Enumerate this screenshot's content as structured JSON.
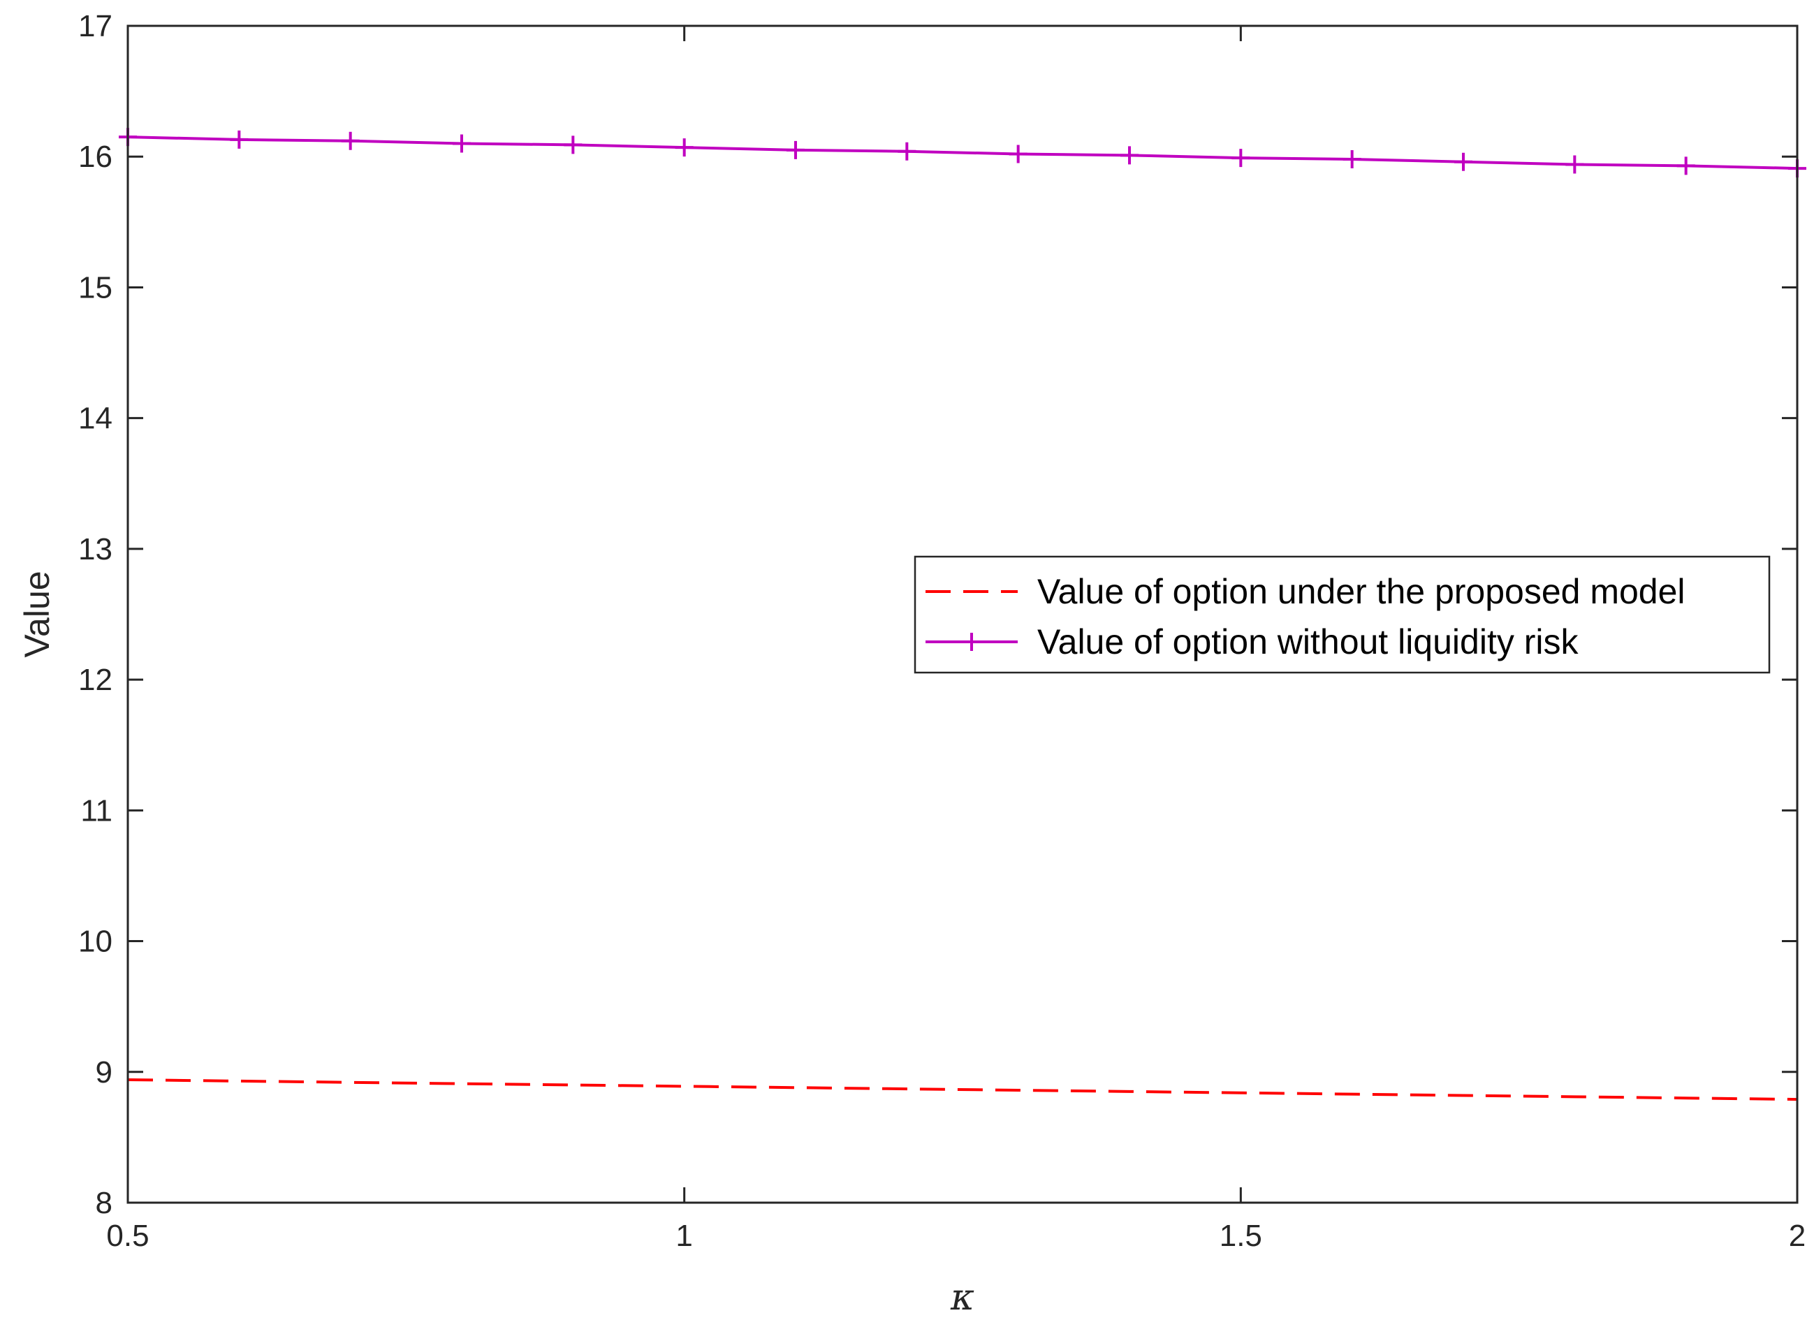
{
  "chart_data": {
    "type": "line",
    "title": "",
    "xlabel": "κ",
    "ylabel": "Value",
    "xlim": [
      0.5,
      2
    ],
    "ylim": [
      8,
      17
    ],
    "xticks": [
      0.5,
      1,
      1.5,
      2
    ],
    "xtick_labels": [
      "0.5",
      "1",
      "1.5",
      "2"
    ],
    "yticks": [
      8,
      9,
      10,
      11,
      12,
      13,
      14,
      15,
      16,
      17
    ],
    "ytick_labels": [
      "8",
      "9",
      "10",
      "11",
      "12",
      "13",
      "14",
      "15",
      "16",
      "17"
    ],
    "grid": false,
    "legend_position": "center-right",
    "x": [
      0.5,
      0.6,
      0.7,
      0.8,
      0.9,
      1.0,
      1.1,
      1.2,
      1.3,
      1.4,
      1.5,
      1.6,
      1.7,
      1.8,
      1.9,
      2.0
    ],
    "series": [
      {
        "name": "Value of option under the proposed model",
        "color": "#ff0000",
        "style": "dashed",
        "marker": "none",
        "values": [
          8.94,
          8.93,
          8.92,
          8.91,
          8.9,
          8.89,
          8.88,
          8.87,
          8.86,
          8.85,
          8.84,
          8.83,
          8.82,
          8.81,
          8.8,
          8.79
        ]
      },
      {
        "name": "Value of option without liquidity risk",
        "color": "#c000c0",
        "style": "solid",
        "marker": "plus",
        "values": [
          16.15,
          16.13,
          16.12,
          16.1,
          16.09,
          16.07,
          16.05,
          16.04,
          16.02,
          16.01,
          15.99,
          15.98,
          15.96,
          15.94,
          15.93,
          15.91
        ]
      }
    ]
  }
}
